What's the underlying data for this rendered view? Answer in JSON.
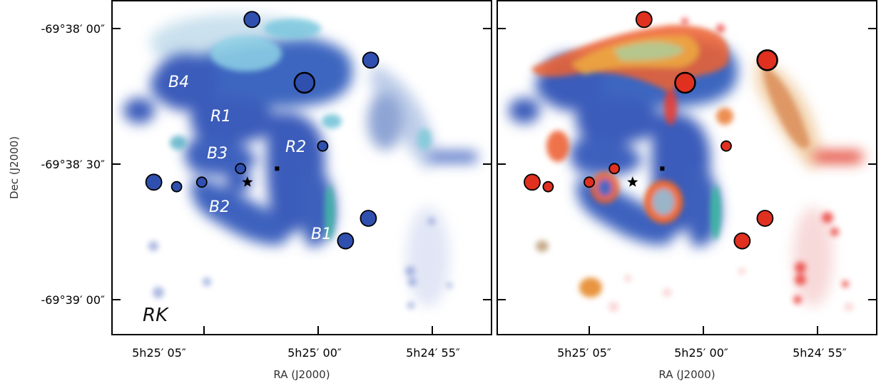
{
  "chart_data": [
    {
      "type": "scatter",
      "panel": "left",
      "xlabel": "RA (J2000)",
      "ylabel": "Dec (J2000)",
      "xticks": [
        "5h25′ 05″",
        "5h25′ 00″",
        "5h24′ 55″"
      ],
      "yticks": [
        "-69°38′ 00″",
        "-69°38′ 30″",
        "-69°39′ 00″"
      ],
      "panel_label": "RK",
      "region_labels": [
        "B4",
        "R1",
        "R2",
        "B3",
        "B2",
        "B1"
      ],
      "marker_color": "#3050b0",
      "markers": [
        {
          "ra": "5h25m02.9s",
          "dec": "-69d37m58s",
          "size": "medium"
        },
        {
          "ra": "5h25m00.6s",
          "dec": "-69d38m12s",
          "size": "large"
        },
        {
          "ra": "5h24m57.7s",
          "dec": "-69d38m07s",
          "size": "medium"
        },
        {
          "ra": "5h24m59.8s",
          "dec": "-69d38m26s",
          "size": "small"
        },
        {
          "ra": "5h25m03.4s",
          "dec": "-69d38m31s",
          "size": "small"
        },
        {
          "ra": "5h25m05.1s",
          "dec": "-69d38m34s",
          "size": "small"
        },
        {
          "ra": "5h25m06.2s",
          "dec": "-69d38m35s",
          "size": "small"
        },
        {
          "ra": "5h25m07.2s",
          "dec": "-69d38m34s",
          "size": "medium"
        },
        {
          "ra": "5h24m58.8s",
          "dec": "-69d38m47s",
          "size": "medium"
        },
        {
          "ra": "5h24m57.8s",
          "dec": "-69d38m42s",
          "size": "medium"
        }
      ],
      "star_marker": {
        "ra": "5h25m03.1s",
        "dec": "-69d38m34s"
      },
      "square_marker": {
        "ra": "5h25m01.8s",
        "dec": "-69d38m31s"
      }
    },
    {
      "type": "scatter",
      "panel": "right",
      "xlabel": "RA (J2000)",
      "xticks": [
        "5h25′ 05″",
        "5h25′ 00″",
        "5h24′ 55″"
      ],
      "marker_color": "#e03020",
      "markers": [
        {
          "ra": "5h25m02.6s",
          "dec": "-69d37m58s",
          "size": "medium"
        },
        {
          "ra": "5h25m00.8s",
          "dec": "-69d38m12s",
          "size": "large"
        },
        {
          "ra": "5h24m57.2s",
          "dec": "-69d38m07s",
          "size": "large"
        },
        {
          "ra": "5h24m59.0s",
          "dec": "-69d38m26s",
          "size": "small"
        },
        {
          "ra": "5h25m03.9s",
          "dec": "-69d38m31s",
          "size": "small"
        },
        {
          "ra": "5h25m05.0s",
          "dec": "-69d38m34s",
          "size": "small"
        },
        {
          "ra": "5h25m06.8s",
          "dec": "-69d38m35s",
          "size": "small"
        },
        {
          "ra": "5h25m07.5s",
          "dec": "-69d38m34s",
          "size": "medium"
        },
        {
          "ra": "5h24m58.3s",
          "dec": "-69d38m47s",
          "size": "medium"
        },
        {
          "ra": "5h24m57.3s",
          "dec": "-69d38m42s",
          "size": "medium"
        }
      ],
      "star_marker": {
        "ra": "5h25m03.1s",
        "dec": "-69d38m34s"
      },
      "square_marker": {
        "ra": "5h25m01.8s",
        "dec": "-69d38m31s"
      }
    }
  ]
}
